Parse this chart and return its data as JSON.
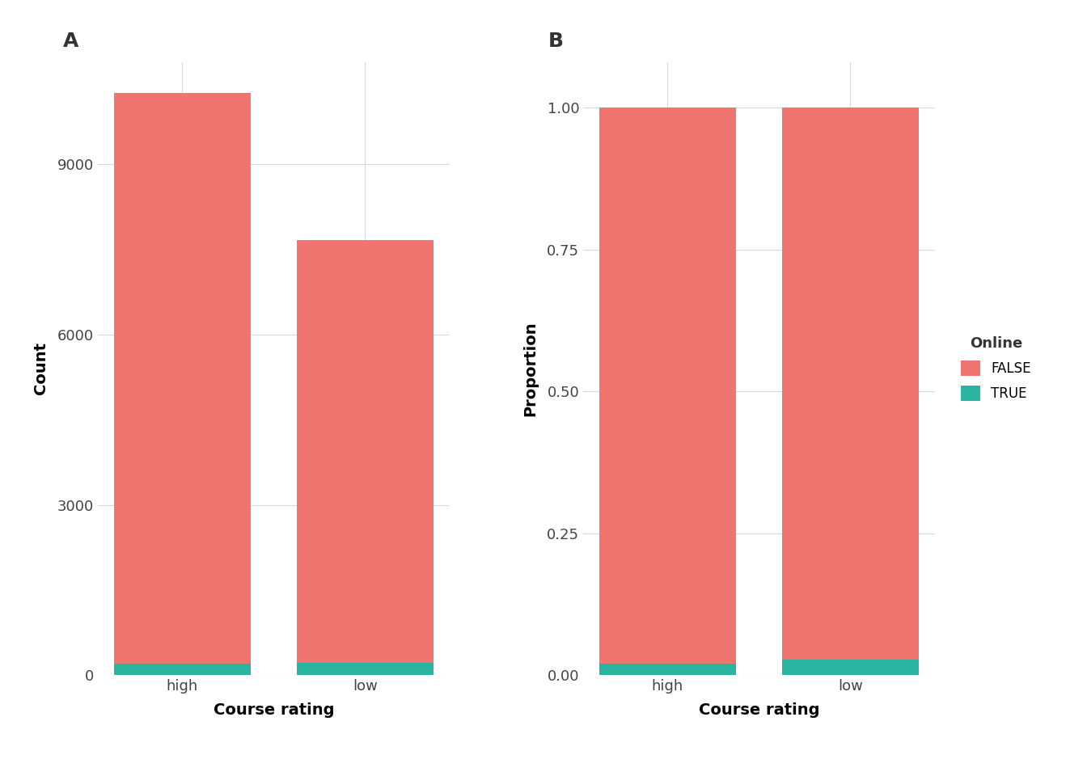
{
  "categories": [
    "high",
    "low"
  ],
  "false_counts": [
    10050,
    7450
  ],
  "true_counts": [
    200,
    210
  ],
  "false_props": [
    0.98,
    0.972
  ],
  "true_props": [
    0.02,
    0.028
  ],
  "color_false": "#F07470",
  "color_true": "#2AB5A0",
  "xlabel": "Course rating",
  "ylabel_a": "Count",
  "ylabel_b": "Proportion",
  "label_A": "A",
  "label_B": "B",
  "legend_title": "Online",
  "legend_labels": [
    "FALSE",
    "TRUE"
  ],
  "yticks_a": [
    0,
    3000,
    6000,
    9000
  ],
  "yticks_b": [
    0.0,
    0.25,
    0.5,
    0.75,
    1.0
  ],
  "ylim_a": [
    0,
    10800
  ],
  "ylim_b": [
    0,
    1.08
  ],
  "background_color": "#ffffff",
  "panel_background": "#ffffff",
  "grid_color": "#d9d9d9",
  "bar_width": 0.75,
  "tick_label_size": 13,
  "axis_label_size": 14,
  "panel_label_size": 18,
  "legend_title_size": 13,
  "legend_label_size": 12
}
